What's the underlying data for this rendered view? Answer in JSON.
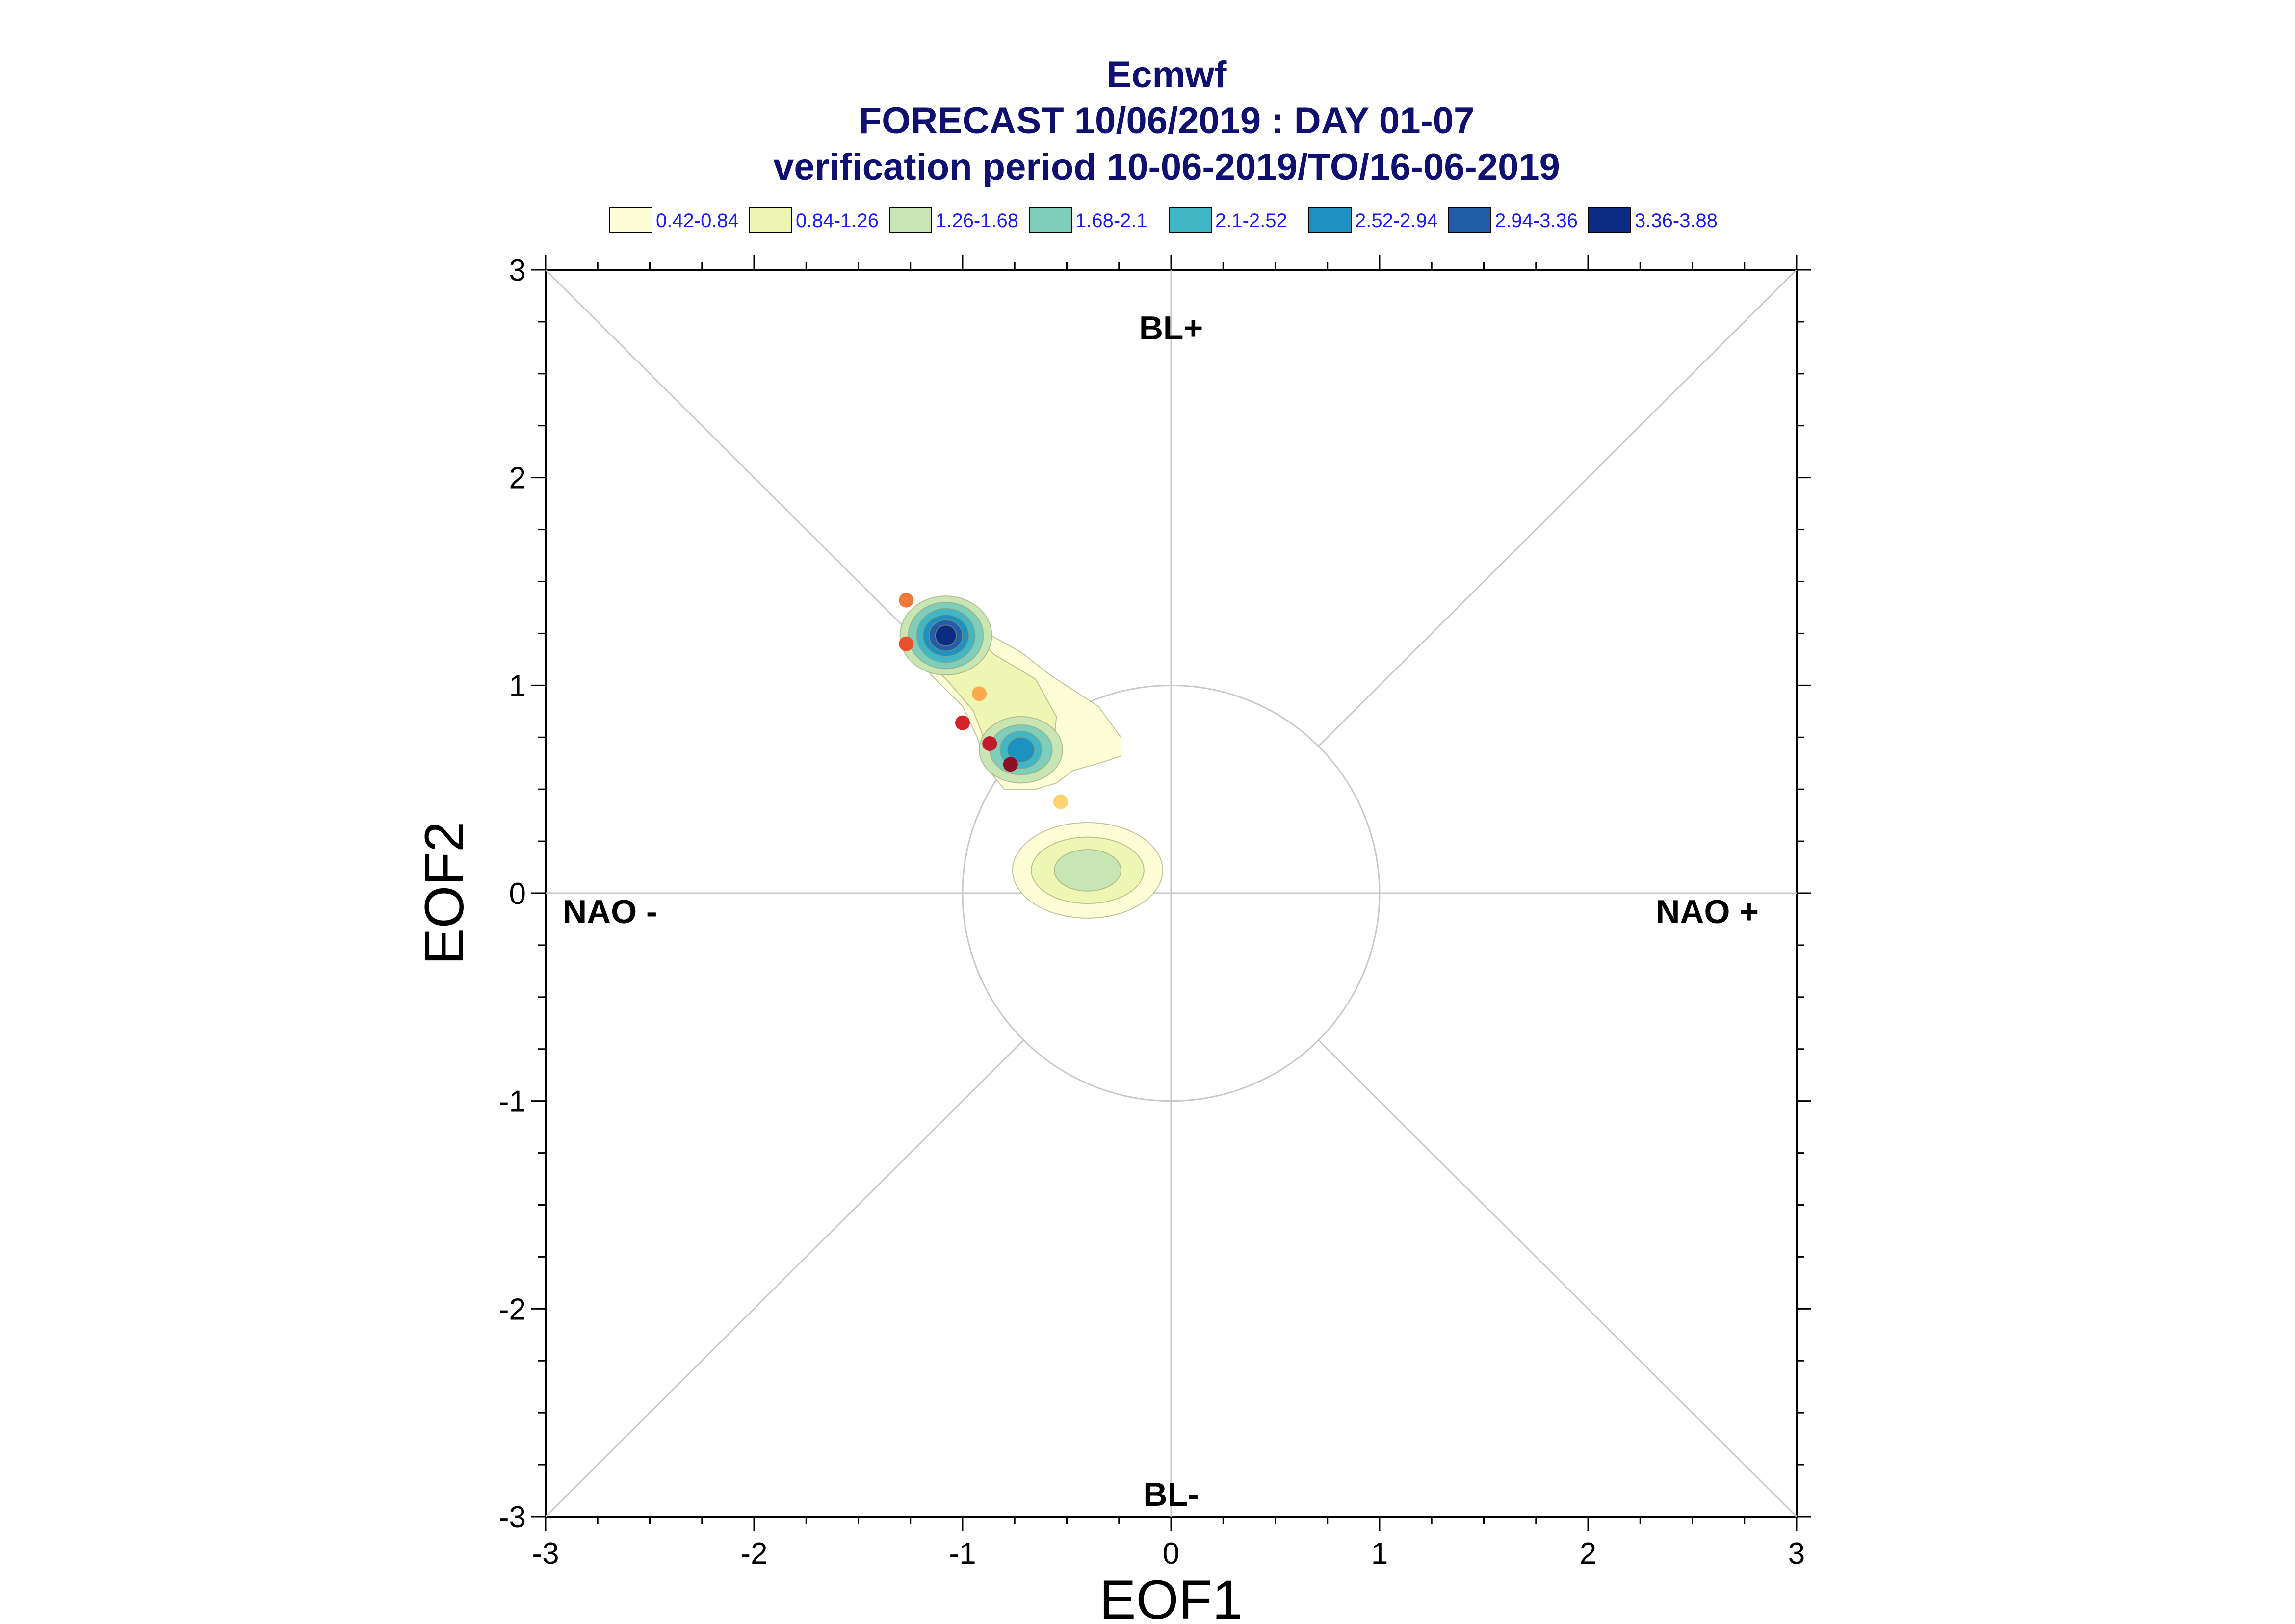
{
  "chart_data": {
    "type": "scatter",
    "title": "Ecmwf",
    "subtitle": "FORECAST 10/06/2019 : DAY 01-07",
    "subtitle2": "verification period 10-06-2019/TO/16-06-2019",
    "xlabel": "EOF1",
    "ylabel": "EOF2",
    "xlim": [
      -3,
      3
    ],
    "ylim": [
      -3,
      3
    ],
    "xticks": [
      "-3",
      "-2",
      "-1",
      "0",
      "1",
      "2",
      "3"
    ],
    "yticks": [
      "-3",
      "-2",
      "-1",
      "0",
      "1",
      "2",
      "3"
    ],
    "grid": false,
    "reference_circle_radius": 1,
    "regime_labels": {
      "top": "BL+",
      "bottom": "BL-",
      "left": "NAO -",
      "right": "NAO +"
    },
    "legend": {
      "placement": "top",
      "entries": [
        {
          "label": "0.42-0.84",
          "color": "#fdfdd6"
        },
        {
          "label": "0.84-1.26",
          "color": "#eef6b4"
        },
        {
          "label": "1.26-1.68",
          "color": "#c8e6b4"
        },
        {
          "label": "1.68-2.1",
          "color": "#7fcdbb"
        },
        {
          "label": "2.1-2.52",
          "color": "#41b6c4"
        },
        {
          "label": "2.52-2.94",
          "color": "#1d91c0"
        },
        {
          "label": "2.94-3.36",
          "color": "#225ea8"
        },
        {
          "label": "3.36-3.88",
          "color": "#0c2c84"
        }
      ]
    },
    "density_peaks": [
      {
        "x": -1.08,
        "y": 1.25,
        "level": 3.6
      },
      {
        "x": -0.72,
        "y": 0.7,
        "level": 2.7
      },
      {
        "x": -0.4,
        "y": 0.13,
        "level": 1.4
      }
    ],
    "points": [
      {
        "x": -1.27,
        "y": 1.41,
        "color": "#f17a3a"
      },
      {
        "x": -1.27,
        "y": 1.2,
        "color": "#e8522b"
      },
      {
        "x": -0.92,
        "y": 0.96,
        "color": "#fca94d"
      },
      {
        "x": -1.0,
        "y": 0.82,
        "color": "#d6232a"
      },
      {
        "x": -0.87,
        "y": 0.72,
        "color": "#c21a2a"
      },
      {
        "x": -0.77,
        "y": 0.62,
        "color": "#8b1024"
      },
      {
        "x": -0.53,
        "y": 0.44,
        "color": "#fdd36e"
      }
    ]
  }
}
